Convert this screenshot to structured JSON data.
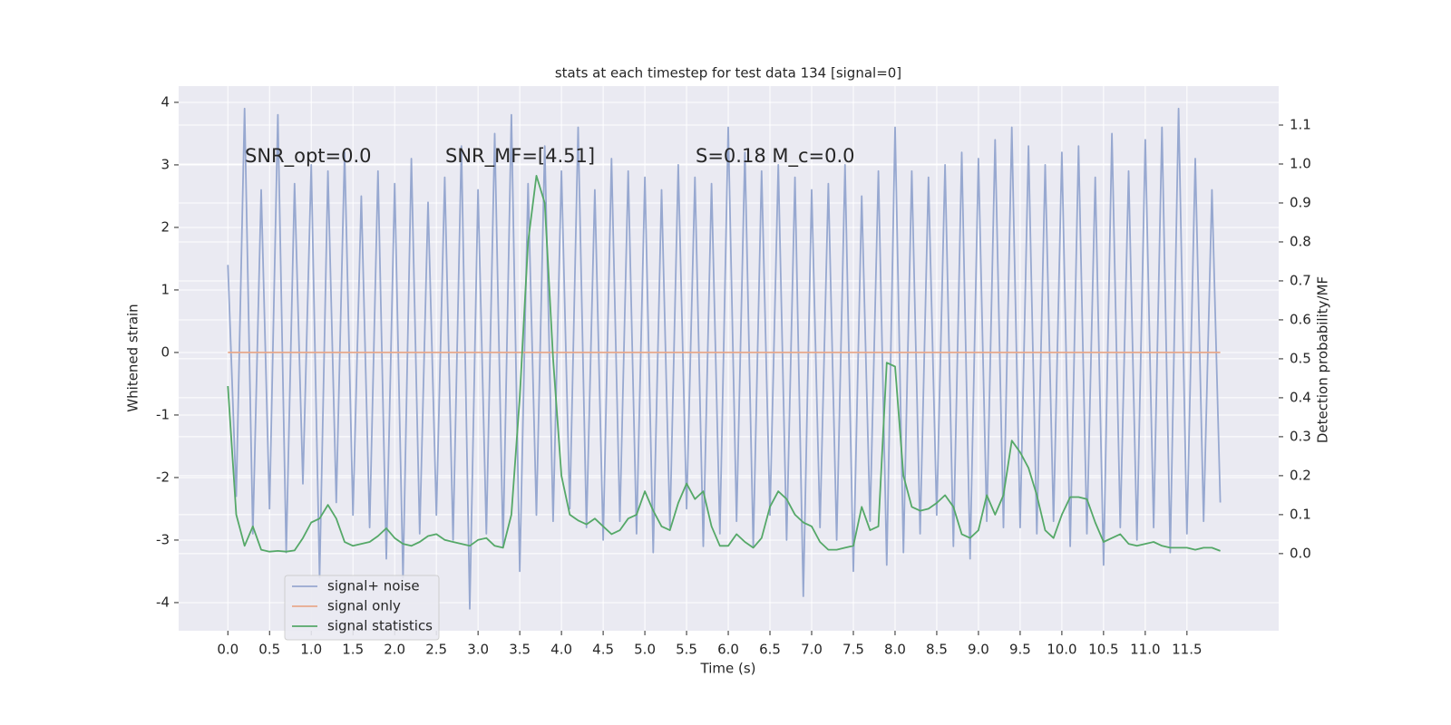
{
  "chart_data": {
    "type": "line",
    "title": "stats at each timestep for test data 134 [signal=0]",
    "xlabel": "Time (s)",
    "ylabel": "Whitened strain",
    "y2label": "Detection probability/MF",
    "annotations": [
      "SNR_opt=0.0",
      "SNR_MF=[4.51]",
      "S=0.18   M_c=0.0"
    ],
    "xlim": [
      -0.59,
      12.6
    ],
    "ylim": [
      -4.45,
      4.26
    ],
    "y2lim": [
      -0.198,
      1.2
    ],
    "xticks": [
      {
        "value": 0,
        "label": "0.0"
      },
      0.5,
      {
        "value": 1,
        "label": "1.0"
      },
      1.5,
      {
        "value": 2,
        "label": "2.0"
      },
      2.5,
      {
        "value": 3,
        "label": "3.0"
      },
      3.5,
      {
        "value": 4,
        "label": "4.0"
      },
      4.5,
      {
        "value": 5,
        "label": "5.0"
      },
      5.5,
      {
        "value": 6,
        "label": "6.0"
      },
      6.5,
      {
        "value": 7,
        "label": "7.0"
      },
      7.5,
      {
        "value": 8,
        "label": "8.0"
      },
      8.5,
      {
        "value": 9,
        "label": "9.0"
      },
      9.5,
      {
        "value": 10,
        "label": "10.0"
      },
      10.5,
      {
        "value": 11,
        "label": "11.0"
      },
      11.5
    ],
    "yticks": [
      -4,
      -3,
      -2,
      -1,
      0,
      1,
      2,
      3,
      4
    ],
    "y2ticks": [
      {
        "value": 0,
        "label": "0.0"
      },
      0.1,
      0.2,
      0.3,
      0.4,
      0.5,
      0.6,
      0.7,
      0.8,
      0.9,
      {
        "value": 1,
        "label": "1.0"
      },
      1.1
    ],
    "grid": true,
    "legend": "lower left",
    "series": [
      {
        "name": "signal+ noise",
        "color": "#97a8d0",
        "axis": "y",
        "x": [
          0,
          0.1,
          0.2,
          0.3,
          0.4,
          0.5,
          0.6,
          0.7,
          0.8,
          0.9,
          1,
          1.1,
          1.2,
          1.3,
          1.4,
          1.5,
          1.6,
          1.7,
          1.8,
          1.9,
          2,
          2.1,
          2.2,
          2.3,
          2.4,
          2.5,
          2.6,
          2.7,
          2.8,
          2.9,
          3,
          3.1,
          3.2,
          3.3,
          3.4,
          3.5,
          3.6,
          3.7,
          3.8,
          3.9,
          4,
          4.1,
          4.2,
          4.3,
          4.4,
          4.5,
          4.6,
          4.7,
          4.8,
          4.9,
          5,
          5.1,
          5.2,
          5.3,
          5.4,
          5.5,
          5.6,
          5.7,
          5.8,
          5.9,
          6,
          6.1,
          6.2,
          6.3,
          6.4,
          6.5,
          6.6,
          6.7,
          6.8,
          6.9,
          7,
          7.1,
          7.2,
          7.3,
          7.4,
          7.5,
          7.6,
          7.7,
          7.8,
          7.9,
          8,
          8.1,
          8.2,
          8.3,
          8.4,
          8.5,
          8.6,
          8.7,
          8.8,
          8.9,
          9,
          9.1,
          9.2,
          9.3,
          9.4,
          9.5,
          9.6,
          9.7,
          9.8,
          9.9,
          10,
          10.1,
          10.2,
          10.3,
          10.4,
          10.5,
          10.6,
          10.7,
          10.8,
          10.9,
          11,
          11.1,
          11.2,
          11.3,
          11.4,
          11.5,
          11.6,
          11.7,
          11.8,
          11.9
        ],
        "values": [
          1.4,
          -2.3,
          3.9,
          -2.9,
          2.6,
          -2.5,
          3.8,
          -3.2,
          2.7,
          -2.1,
          3.0,
          -3.6,
          2.9,
          -2.4,
          3.2,
          -2.6,
          2.5,
          -2.8,
          2.9,
          -3.3,
          2.7,
          -3.6,
          3.1,
          -2.9,
          2.4,
          -2.6,
          2.8,
          -3.0,
          3.3,
          -4.1,
          2.6,
          -2.9,
          3.5,
          -3.1,
          3.8,
          -3.5,
          2.7,
          -2.6,
          3.3,
          -2.7,
          2.9,
          -2.5,
          3.6,
          -2.8,
          2.6,
          -3.0,
          3.1,
          -2.7,
          2.9,
          -2.9,
          2.8,
          -3.2,
          2.6,
          -2.8,
          3.0,
          -2.5,
          2.8,
          -3.1,
          2.7,
          -2.9,
          3.6,
          -2.7,
          3.2,
          -3.1,
          2.9,
          -2.6,
          3.0,
          -3.0,
          2.8,
          -3.9,
          2.6,
          -2.8,
          2.7,
          -3.0,
          3.0,
          -3.5,
          2.5,
          -2.7,
          2.9,
          -3.4,
          3.6,
          -3.2,
          2.9,
          -2.9,
          2.8,
          -2.6,
          3.0,
          -3.1,
          3.2,
          -3.3,
          3.1,
          -2.7,
          3.4,
          -2.8,
          3.6,
          -2.8,
          3.3,
          -2.9,
          3.0,
          -2.7,
          3.2,
          -3.1,
          3.3,
          -2.9,
          2.8,
          -3.4,
          3.5,
          -2.8,
          2.9,
          -3.0,
          3.4,
          -2.8,
          3.6,
          -3.2,
          3.9,
          -2.9,
          3.1,
          -2.7,
          2.6,
          -2.4
        ]
      },
      {
        "name": "signal only",
        "color": "#e8a98c",
        "axis": "y",
        "x": [
          0,
          11.9
        ],
        "values": [
          0,
          0
        ]
      },
      {
        "name": "signal statistics",
        "color": "#55a868",
        "axis": "y2",
        "x": [
          0,
          0.1,
          0.2,
          0.3,
          0.4,
          0.5,
          0.6,
          0.7,
          0.8,
          0.9,
          1,
          1.1,
          1.2,
          1.3,
          1.4,
          1.5,
          1.6,
          1.7,
          1.8,
          1.9,
          2,
          2.1,
          2.2,
          2.3,
          2.4,
          2.5,
          2.6,
          2.7,
          2.8,
          2.9,
          3,
          3.1,
          3.2,
          3.3,
          3.4,
          3.5,
          3.6,
          3.7,
          3.8,
          3.9,
          4,
          4.1,
          4.2,
          4.3,
          4.4,
          4.5,
          4.6,
          4.7,
          4.8,
          4.9,
          5,
          5.1,
          5.2,
          5.3,
          5.4,
          5.5,
          5.6,
          5.7,
          5.8,
          5.9,
          6,
          6.1,
          6.2,
          6.3,
          6.4,
          6.5,
          6.6,
          6.7,
          6.8,
          6.9,
          7,
          7.1,
          7.2,
          7.3,
          7.4,
          7.5,
          7.6,
          7.7,
          7.8,
          7.9,
          8,
          8.1,
          8.2,
          8.3,
          8.4,
          8.5,
          8.6,
          8.7,
          8.8,
          8.9,
          9,
          9.1,
          9.2,
          9.3,
          9.4,
          9.5,
          9.6,
          9.7,
          9.8,
          9.9,
          10,
          10.1,
          10.2,
          10.3,
          10.4,
          10.5,
          10.6,
          10.7,
          10.8,
          10.9,
          11,
          11.1,
          11.2,
          11.3,
          11.4,
          11.5,
          11.6,
          11.7,
          11.8,
          11.9
        ],
        "values": [
          0.43,
          0.1,
          0.02,
          0.07,
          0.01,
          0.005,
          0.007,
          0.005,
          0.008,
          0.04,
          0.08,
          0.09,
          0.125,
          0.09,
          0.03,
          0.02,
          0.025,
          0.03,
          0.045,
          0.065,
          0.04,
          0.025,
          0.02,
          0.03,
          0.045,
          0.05,
          0.035,
          0.03,
          0.025,
          0.02,
          0.035,
          0.04,
          0.02,
          0.015,
          0.1,
          0.4,
          0.8,
          0.97,
          0.9,
          0.5,
          0.2,
          0.1,
          0.085,
          0.075,
          0.09,
          0.07,
          0.05,
          0.06,
          0.09,
          0.1,
          0.16,
          0.11,
          0.07,
          0.06,
          0.13,
          0.18,
          0.14,
          0.16,
          0.07,
          0.02,
          0.02,
          0.05,
          0.03,
          0.015,
          0.04,
          0.12,
          0.16,
          0.14,
          0.1,
          0.08,
          0.07,
          0.03,
          0.01,
          0.01,
          0.015,
          0.02,
          0.12,
          0.06,
          0.07,
          0.49,
          0.48,
          0.2,
          0.12,
          0.11,
          0.115,
          0.13,
          0.15,
          0.12,
          0.05,
          0.04,
          0.06,
          0.15,
          0.1,
          0.15,
          0.29,
          0.26,
          0.22,
          0.15,
          0.06,
          0.04,
          0.1,
          0.145,
          0.145,
          0.14,
          0.08,
          0.03,
          0.04,
          0.05,
          0.025,
          0.02,
          0.025,
          0.03,
          0.02,
          0.015,
          0.015,
          0.015,
          0.01,
          0.015,
          0.015,
          0.007
        ]
      }
    ]
  }
}
